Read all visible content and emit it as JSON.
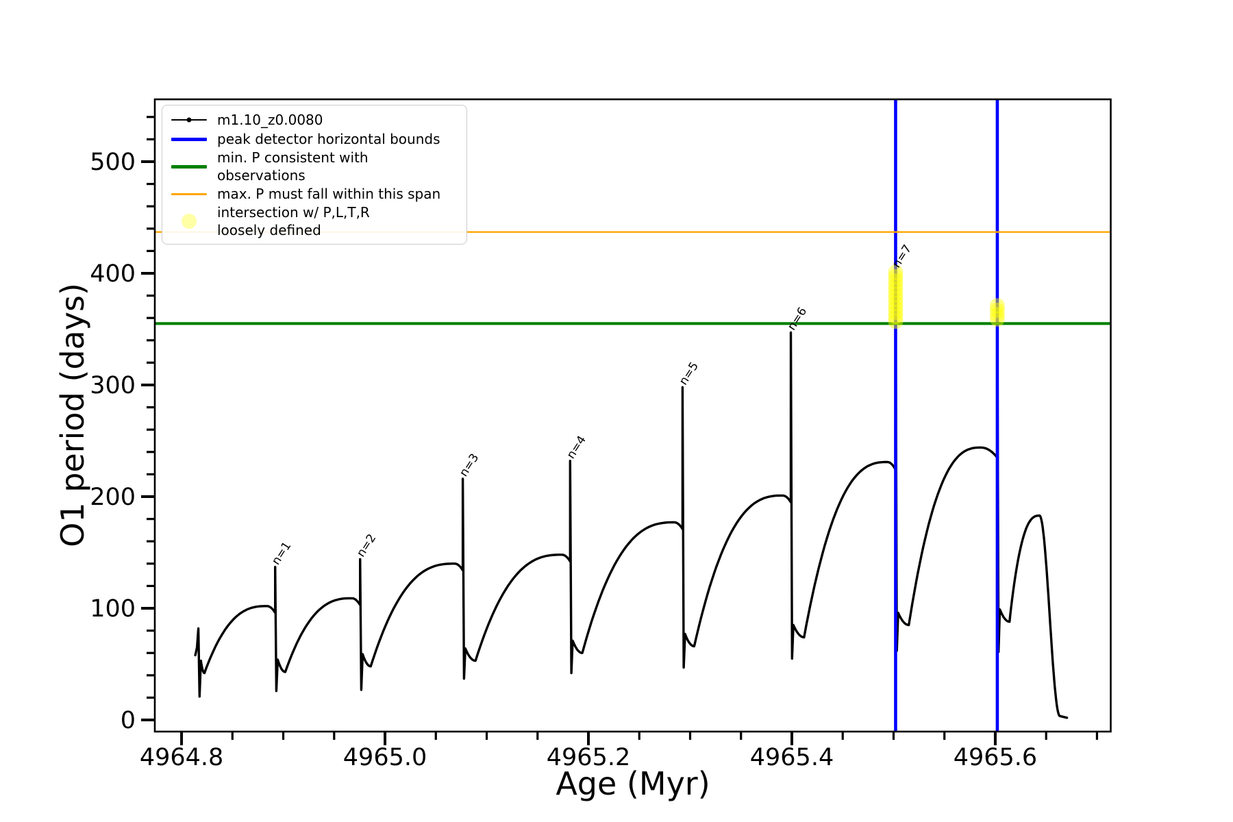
{
  "figure": {
    "background": "#ffffff"
  },
  "axes": {
    "xlabel": "Age (Myr)",
    "ylabel": "O1 period (days)",
    "xlim": [
      4964.7737,
      4965.7135
    ],
    "ylim": [
      -10.4,
      555.8
    ],
    "x_major_ticks": [
      4964.8,
      4965.0,
      4965.2,
      4965.4,
      4965.6
    ],
    "x_major_labels": [
      "4964.8",
      "4965.0",
      "4965.2",
      "4965.4",
      "4965.6"
    ],
    "x_minor_step": 0.05,
    "y_major_ticks": [
      0,
      100,
      200,
      300,
      400,
      500
    ],
    "y_major_labels": [
      "0",
      "100",
      "200",
      "300",
      "400",
      "500"
    ],
    "y_minor_step": 20,
    "frame_color": "#000000"
  },
  "legend": {
    "entries": [
      {
        "label": "m1.10_z0.0080",
        "sample": "line-marker",
        "color": "#000000",
        "lw": 2
      },
      {
        "label": "peak detector horizontal bounds",
        "sample": "line",
        "color": "#0000ff",
        "lw": 5
      },
      {
        "label": "min. P consistent with observations",
        "sample": "line",
        "color": "#008000",
        "lw": 5
      },
      {
        "label": "max. P must fall within this span",
        "sample": "line",
        "color": "#ffa500",
        "lw": 3
      },
      {
        "label": "intersection w/ P,L,T,R\nloosely defined",
        "sample": "marker",
        "color": "rgba(255,255,0,0.35)"
      }
    ]
  },
  "chart_data": {
    "type": "line",
    "title": "",
    "xlabel": "Age (Myr)",
    "ylabel": "O1 period (days)",
    "series_name": "m1.10_z0.0080",
    "series_color": "#000000",
    "legend_position": "upper left",
    "grid": false,
    "curve_lead_in": [
      [
        4964.8135,
        58
      ],
      [
        4964.8152,
        65
      ]
    ],
    "curve_cycles": [
      {
        "spike_x": 4964.8165,
        "spike_top": 82,
        "spike_bottom": 21,
        "dip_x": 4964.8225,
        "dip_y": 42,
        "shoulder_x": 4964.884,
        "shoulder_y": 102,
        "round_drop": 6
      },
      {
        "spike_x": 4964.892,
        "spike_top": 137,
        "spike_bottom": 26,
        "dip_x": 4964.902,
        "dip_y": 43,
        "shoulder_x": 4964.9675,
        "shoulder_y": 109,
        "round_drop": 6
      },
      {
        "spike_x": 4964.9755,
        "spike_top": 144,
        "spike_bottom": 27,
        "dip_x": 4964.986,
        "dip_y": 48,
        "shoulder_x": 4965.0685,
        "shoulder_y": 140,
        "round_drop": 6
      },
      {
        "spike_x": 4965.0765,
        "spike_top": 216,
        "spike_bottom": 37,
        "dip_x": 4965.089,
        "dip_y": 53,
        "shoulder_x": 4965.174,
        "shoulder_y": 148,
        "round_drop": 6
      },
      {
        "spike_x": 4965.182,
        "spike_top": 232,
        "spike_bottom": 42,
        "dip_x": 4965.194,
        "dip_y": 60,
        "shoulder_x": 4965.2845,
        "shoulder_y": 177,
        "round_drop": 6
      },
      {
        "spike_x": 4965.2925,
        "spike_top": 298,
        "spike_bottom": 47,
        "dip_x": 4965.304,
        "dip_y": 66,
        "shoulder_x": 4965.391,
        "shoulder_y": 201,
        "round_drop": 6
      },
      {
        "spike_x": 4965.399,
        "spike_top": 347,
        "spike_bottom": 55,
        "dip_x": 4965.412,
        "dip_y": 74,
        "shoulder_x": 4965.494,
        "shoulder_y": 231,
        "round_drop": 7
      },
      {
        "spike_x": 4965.502,
        "spike_top": 403,
        "spike_bottom": 62,
        "dip_x": 4965.515,
        "dip_y": 85,
        "shoulder_x": 4965.586,
        "shoulder_y": 244,
        "round_drop": 9
      },
      {
        "spike_x": 4965.602,
        "spike_top": 372,
        "spike_bottom": 61,
        "dip_x": 4965.614,
        "dip_y": 88,
        "shoulder_x": 4965.6435,
        "shoulder_y": 183,
        "round_drop": 0
      }
    ],
    "curve_tail": {
      "fall_start_x": 4965.6435,
      "fall_start_y": 183,
      "fall_end_x": 4965.6635,
      "fall_end_y": 3.5,
      "end_x": 4965.6705,
      "end_y": 2
    },
    "peak_labels": [
      {
        "label": "n=1",
        "x": 4964.892,
        "y": 137
      },
      {
        "label": "n=2",
        "x": 4964.9755,
        "y": 144
      },
      {
        "label": "n=3",
        "x": 4965.0765,
        "y": 216
      },
      {
        "label": "n=4",
        "x": 4965.182,
        "y": 232
      },
      {
        "label": "n=5",
        "x": 4965.2925,
        "y": 298
      },
      {
        "label": "n=6",
        "x": 4965.399,
        "y": 347
      },
      {
        "label": "n=7",
        "x": 4965.502,
        "y": 403
      }
    ],
    "vertical_lines": [
      {
        "x": 4965.502,
        "color": "#0000ff",
        "lw": 4.6,
        "label": "peak detector horizontal bounds"
      },
      {
        "x": 4965.602,
        "color": "#0000ff",
        "lw": 4.6,
        "label": "peak detector horizontal bounds"
      }
    ],
    "horizontal_lines": [
      {
        "y": 355,
        "color": "#008000",
        "lw": 4.2,
        "label": "min. P consistent with observations"
      },
      {
        "y": 437,
        "color": "#ffa500",
        "lw": 2.4,
        "label": "max. P must fall within this span"
      }
    ],
    "intersection_markers": {
      "color": "#ffff00",
      "opacity": 0.45,
      "radius": 11,
      "chains": [
        {
          "x": 4965.502,
          "y_values": [
            357,
            361,
            365,
            369,
            373,
            377,
            381,
            385,
            389,
            393,
            397,
            401
          ]
        },
        {
          "x": 4965.602,
          "y_values": [
            359,
            363,
            367,
            371
          ]
        }
      ]
    }
  }
}
